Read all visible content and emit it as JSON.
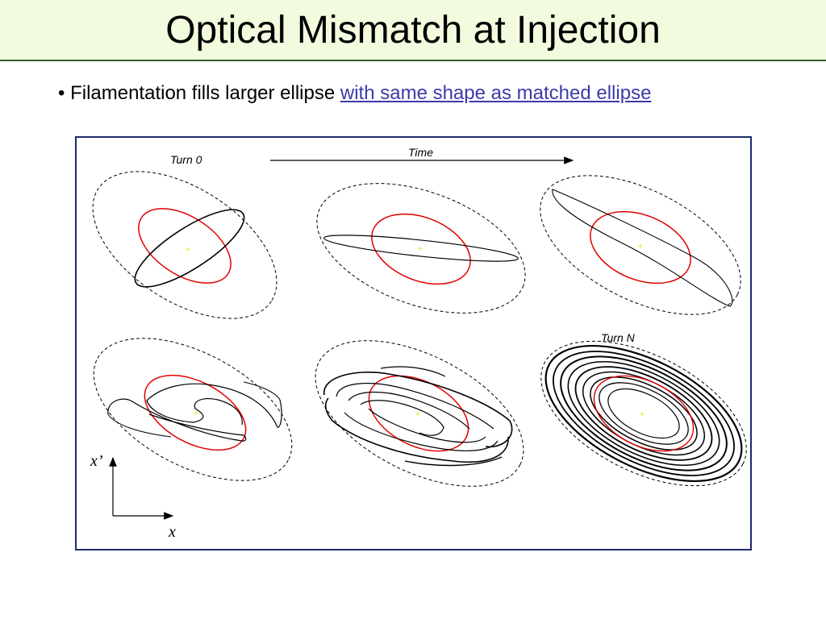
{
  "slide": {
    "title": "Optical Mismatch at Injection",
    "bullet_prefix": "• Filamentation fills larger ellipse ",
    "bullet_link": "with same shape as matched ellipse"
  },
  "figure": {
    "time_label": "Time",
    "turn_start_label": "Turn 0",
    "turn_end_label": "Turn N",
    "axis_vertical_label": "x’",
    "axis_horizontal_label": "x",
    "colors": {
      "frame": "#1c2a6e",
      "matched_ellipse": "#e00000",
      "outer_ellipse": "#000000",
      "beam": "#000000",
      "center_marker": "#e8e000"
    }
  }
}
